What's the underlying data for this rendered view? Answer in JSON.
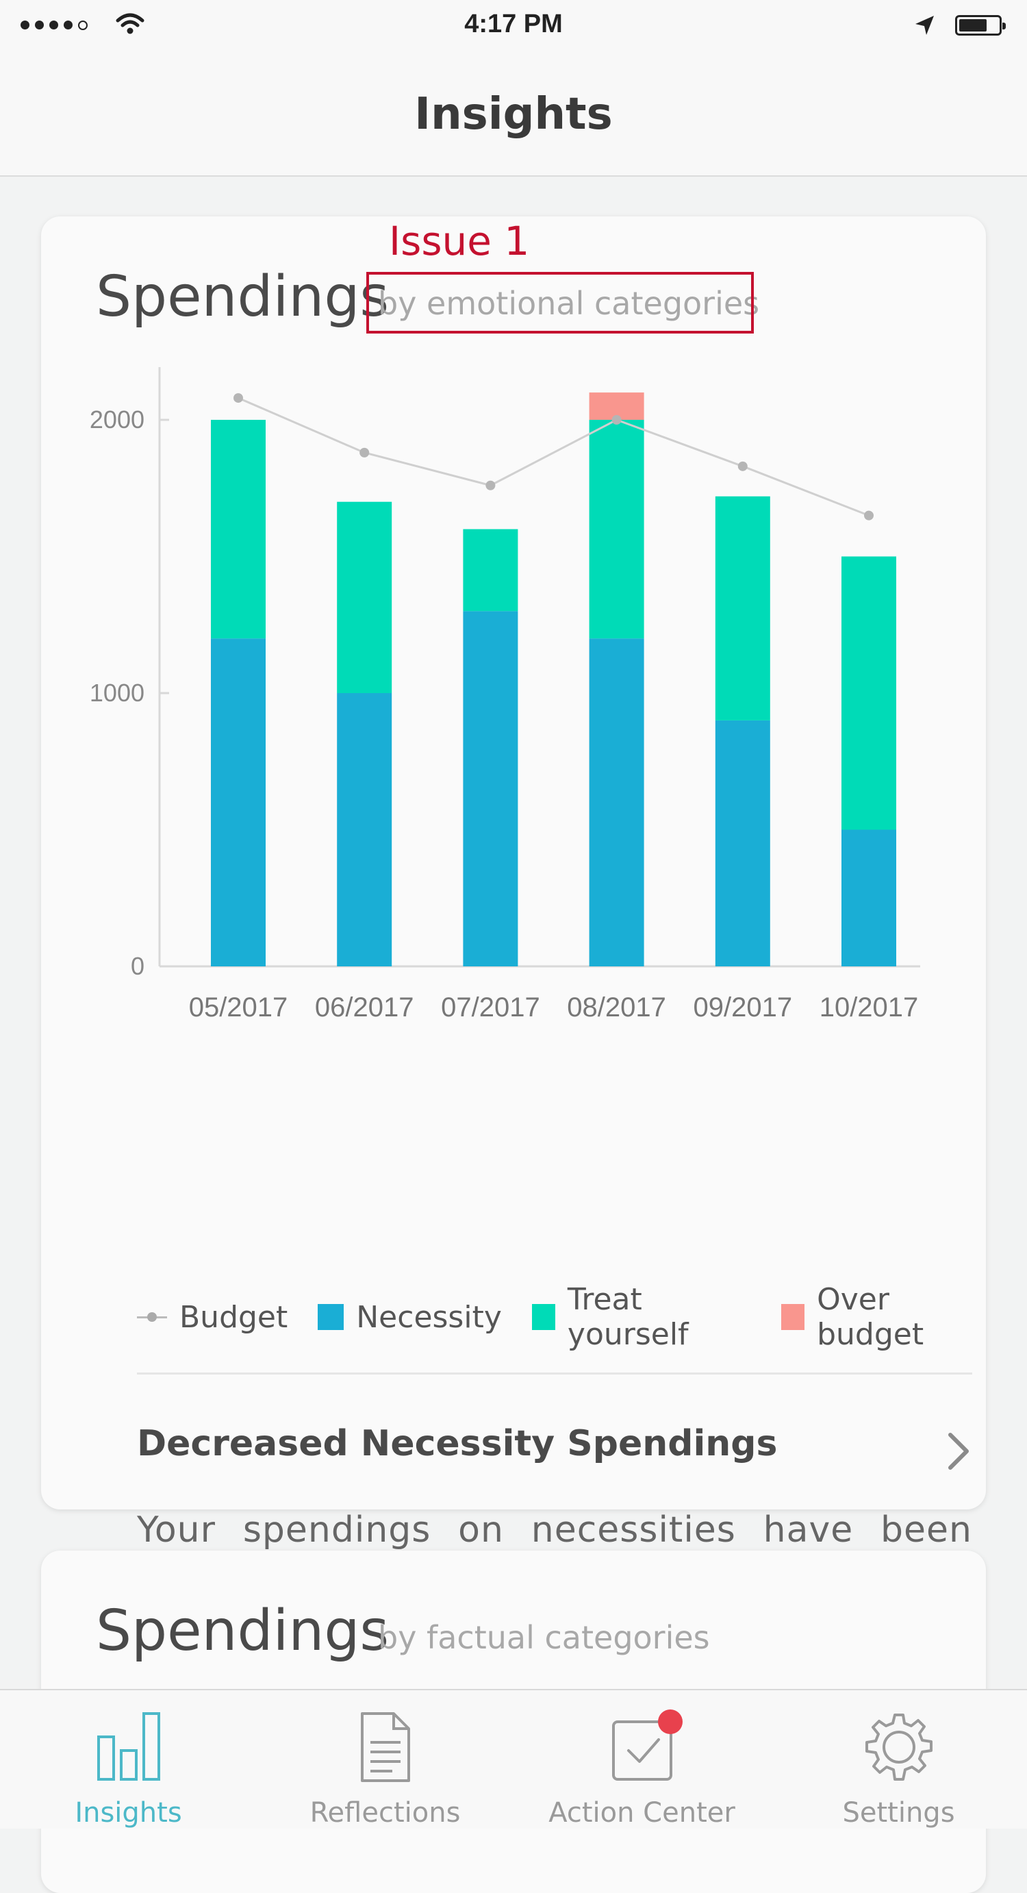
{
  "status_bar": {
    "time": "4:17 PM"
  },
  "nav": {
    "title": "Insights"
  },
  "card1": {
    "title": "Spendings",
    "subtitle": "by emotional categories",
    "issue_label": "Issue 1",
    "insight_title": "Decreased Necessity Spendings",
    "insight_text": "Your spendings on necessities have been decreasing while you have spent more on ‘Treat yourself’ category recently."
  },
  "card2": {
    "title": "Spendings",
    "subtitle": "by factual categories"
  },
  "legend": {
    "budget": "Budget",
    "necessity": "Necessity",
    "treat": "Treat yourself",
    "over": "Over budget"
  },
  "colors": {
    "necessity": "#1aaed5",
    "treat": "#00dbb7",
    "over": "#f9968e",
    "budget": "#cfcfcf",
    "accent": "#4cb8c8"
  },
  "chart_data": {
    "type": "bar",
    "stacked": true,
    "categories": [
      "05/2017",
      "06/2017",
      "07/2017",
      "08/2017",
      "09/2017",
      "10/2017"
    ],
    "series": [
      {
        "name": "Necessity",
        "values": [
          1200,
          1000,
          1300,
          1200,
          900,
          500
        ]
      },
      {
        "name": "Treat yourself",
        "values": [
          800,
          700,
          300,
          800,
          820,
          1000
        ]
      },
      {
        "name": "Over budget",
        "values": [
          0,
          0,
          0,
          100,
          0,
          0
        ]
      }
    ],
    "line": {
      "name": "Budget",
      "values": [
        2080,
        1880,
        1760,
        2000,
        1830,
        1650
      ]
    },
    "yticks": [
      0,
      1000,
      2000
    ],
    "ylim": [
      0,
      2200
    ],
    "grid": false,
    "legend": "bottom"
  },
  "tabs": [
    {
      "label": "Insights",
      "icon": "bar-chart-icon",
      "active": true
    },
    {
      "label": "Reflections",
      "icon": "document-icon",
      "active": false
    },
    {
      "label": "Action Center",
      "icon": "checkbox-icon",
      "active": false
    },
    {
      "label": "Settings",
      "icon": "gear-icon",
      "active": false
    }
  ]
}
